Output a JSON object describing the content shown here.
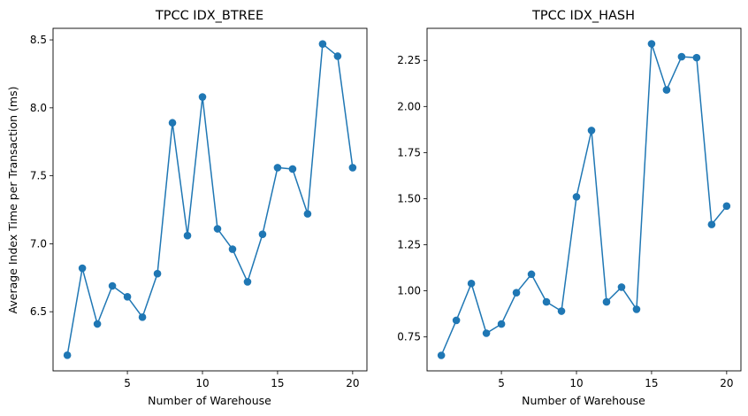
{
  "chart_data": [
    {
      "type": "line",
      "title": "TPCC IDX_BTREE",
      "xlabel": "Number of Warehouse",
      "ylabel": "Average Index Time per Transaction (ms)",
      "x": [
        1,
        2,
        3,
        4,
        5,
        6,
        7,
        8,
        9,
        10,
        11,
        12,
        13,
        14,
        15,
        16,
        17,
        18,
        19,
        20
      ],
      "series": [
        {
          "values": [
            6.18,
            6.82,
            6.41,
            6.69,
            6.61,
            6.46,
            6.78,
            7.89,
            7.06,
            8.08,
            7.11,
            6.96,
            6.72,
            7.07,
            7.56,
            7.55,
            7.22,
            8.47,
            8.38,
            7.56
          ]
        }
      ],
      "xlim": [
        0.05,
        20.95
      ],
      "ylim": [
        6.065,
        8.585
      ],
      "xticks": [
        5,
        10,
        15,
        20
      ],
      "xtick_labels": [
        "5",
        "10",
        "15",
        "20"
      ],
      "yticks": [
        6.5,
        7.0,
        7.5,
        8.0,
        8.5
      ],
      "ytick_labels": [
        "6.5",
        "7.0",
        "7.5",
        "8.0",
        "8.5"
      ],
      "grid": false,
      "marker": "circle",
      "color": "#1f77b4"
    },
    {
      "type": "line",
      "title": "TPCC IDX_HASH",
      "xlabel": "Number of Warehouse",
      "ylabel": "",
      "x": [
        1,
        2,
        3,
        4,
        5,
        6,
        7,
        8,
        9,
        10,
        11,
        12,
        13,
        14,
        15,
        16,
        17,
        18,
        19,
        20
      ],
      "series": [
        {
          "values": [
            0.65,
            0.84,
            1.04,
            0.77,
            0.82,
            0.99,
            1.09,
            0.94,
            0.89,
            1.51,
            1.87,
            0.94,
            1.02,
            0.9,
            2.34,
            2.09,
            2.27,
            2.265,
            1.36,
            1.46
          ]
        }
      ],
      "xlim": [
        0.05,
        20.95
      ],
      "ylim": [
        0.566,
        2.424
      ],
      "xticks": [
        5,
        10,
        15,
        20
      ],
      "xtick_labels": [
        "5",
        "10",
        "15",
        "20"
      ],
      "yticks": [
        0.75,
        1.0,
        1.25,
        1.5,
        1.75,
        2.0,
        2.25
      ],
      "ytick_labels": [
        "0.75",
        "1.00",
        "1.25",
        "1.50",
        "1.75",
        "2.00",
        "2.25"
      ],
      "grid": false,
      "marker": "circle",
      "color": "#1f77b4"
    }
  ]
}
